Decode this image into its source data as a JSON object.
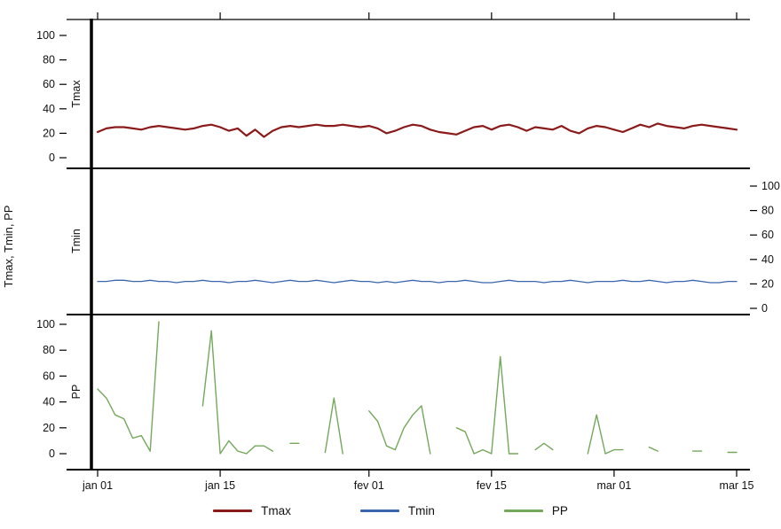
{
  "figure": {
    "y_axis_label": "Tmax, Tmin, PP"
  },
  "chart_data": {
    "type": "line",
    "title": "",
    "layout": "three stacked panels sharing x axis, legend bottom",
    "x_tick_labels": [
      "jan 01",
      "jan 15",
      "fev 01",
      "fev 15",
      "mar 01",
      "mar 15"
    ],
    "x_tick_days": [
      0,
      14,
      31,
      45,
      59,
      73
    ],
    "y_ticks": [
      0,
      20,
      40,
      60,
      80,
      100
    ],
    "ylim": [
      0,
      100
    ],
    "n_days": 74,
    "panels": [
      {
        "label": "Tmax",
        "series": "Tmax",
        "axis_side": "left"
      },
      {
        "label": "Tmin",
        "series": "Tmin",
        "axis_side": "right"
      },
      {
        "label": "PP",
        "series": "PP",
        "axis_side": "left"
      }
    ],
    "series": [
      {
        "name": "Tmax",
        "color": "#8b1a1a",
        "values": [
          21,
          24,
          25,
          25,
          24,
          23,
          25,
          26,
          25,
          24,
          23,
          24,
          26,
          27,
          25,
          22,
          24,
          18,
          23,
          17,
          22,
          25,
          26,
          25,
          26,
          27,
          26,
          26,
          27,
          26,
          25,
          26,
          24,
          20,
          22,
          25,
          27,
          26,
          23,
          21,
          20,
          19,
          22,
          25,
          26,
          23,
          26,
          27,
          25,
          22,
          25,
          24,
          23,
          26,
          22,
          20,
          24,
          26,
          25,
          23,
          21,
          24,
          27,
          25,
          28,
          26,
          25,
          24,
          26,
          27,
          26,
          25,
          24,
          23
        ]
      },
      {
        "name": "Tmin",
        "color": "#3a66b0",
        "values": [
          22,
          22,
          23,
          23,
          22,
          22,
          23,
          22,
          22,
          21,
          22,
          22,
          23,
          22,
          22,
          21,
          22,
          22,
          23,
          22,
          21,
          22,
          23,
          22,
          22,
          23,
          22,
          21,
          22,
          23,
          22,
          22,
          21,
          22,
          21,
          22,
          23,
          22,
          22,
          21,
          22,
          22,
          23,
          22,
          21,
          21,
          22,
          23,
          22,
          22,
          22,
          21,
          22,
          22,
          23,
          22,
          21,
          22,
          22,
          22,
          23,
          22,
          22,
          23,
          22,
          21,
          22,
          22,
          23,
          22,
          21,
          21,
          22,
          22
        ]
      },
      {
        "name": "PP",
        "color": "#74a85c",
        "values": [
          50,
          43,
          30,
          27,
          12,
          14,
          2,
          102,
          null,
          null,
          null,
          null,
          37,
          95,
          0,
          10,
          2,
          0,
          6,
          6,
          2,
          null,
          8,
          8,
          null,
          null,
          1,
          43,
          0,
          null,
          null,
          33,
          25,
          6,
          3,
          20,
          30,
          37,
          0,
          null,
          null,
          20,
          17,
          0,
          3,
          0,
          75,
          0,
          0,
          null,
          3,
          8,
          3,
          null,
          null,
          null,
          0,
          30,
          0,
          3,
          3,
          null,
          null,
          5,
          2,
          null,
          null,
          null,
          2,
          2,
          null,
          null,
          1,
          1
        ]
      }
    ],
    "reference_line": {
      "type": "vertical",
      "at_label": "jan 01"
    }
  },
  "legend": {
    "items": [
      {
        "label": "Tmax"
      },
      {
        "label": "Tmin"
      },
      {
        "label": "PP"
      }
    ]
  }
}
